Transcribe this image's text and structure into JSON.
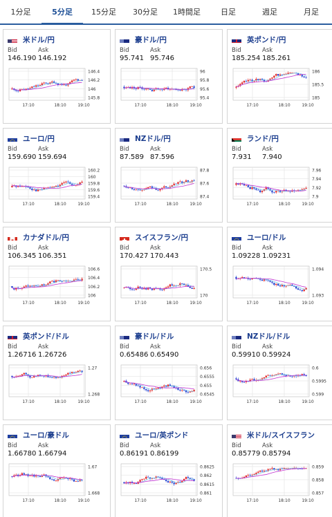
{
  "tabs": [
    {
      "label": "1分足",
      "active": false
    },
    {
      "label": "5分足",
      "active": true
    },
    {
      "label": "15分足",
      "active": false
    },
    {
      "label": "30分足",
      "active": false
    },
    {
      "label": "1時間足",
      "active": false
    },
    {
      "label": "日足",
      "active": false
    },
    {
      "label": "週足",
      "active": false
    },
    {
      "label": "月足",
      "active": false
    }
  ],
  "labels": {
    "bid": "Bid",
    "ask": "Ask"
  },
  "colors": {
    "up": "#e02020",
    "down": "#1f3fd0",
    "ma1": "#c030d0",
    "ma2": "#7fc8e8",
    "grid": "#dddddd",
    "active_tab": "#2a5d9f",
    "pair_text": "#1d3f8f"
  },
  "cards": [
    {
      "pair": "米ドル/円",
      "flag": "us",
      "bid": "146.190",
      "ask": "146.192",
      "ticks": [
        "146.4",
        "146.2",
        "146",
        "145.8"
      ],
      "xt": [
        "17:10",
        "18:10",
        "19:10"
      ],
      "seed": 11,
      "trend": 0.6
    },
    {
      "pair": "豪ドル/円",
      "flag": "au",
      "bid": "95.741",
      "ask": "95.746",
      "ticks": [
        "96",
        "95.8",
        "95.6",
        "95.4"
      ],
      "xt": [
        "17:10",
        "18:10",
        "19:10"
      ],
      "seed": 23,
      "trend": 0.3
    },
    {
      "pair": "英ポンド/円",
      "flag": "gb",
      "bid": "185.254",
      "ask": "185.261",
      "ticks": [
        "186",
        "185.5",
        "185"
      ],
      "xt": [
        "17:10",
        "18:10",
        "19:10"
      ],
      "seed": 37,
      "trend": 0.4
    },
    {
      "pair": "ユーロ/円",
      "flag": "eu",
      "bid": "159.690",
      "ask": "159.694",
      "ticks": [
        "160.2",
        "160",
        "159.8",
        "159.6",
        "159.4"
      ],
      "xt": [
        "17:10",
        "18:10",
        "19:10"
      ],
      "seed": 41,
      "trend": 0.5
    },
    {
      "pair": "NZドル/円",
      "flag": "nz",
      "bid": "87.589",
      "ask": "87.596",
      "ticks": [
        "87.8",
        "87.6",
        "87.4"
      ],
      "xt": [
        "17:10",
        "18:10",
        "19:10"
      ],
      "seed": 53,
      "trend": 0.3
    },
    {
      "pair": "ランド/円",
      "flag": "za",
      "bid": "7.931",
      "ask": "7.940",
      "ticks": [
        "7.96",
        "7.94",
        "7.92",
        "7.9"
      ],
      "xt": [
        "17:10",
        "18:10",
        "19:10"
      ],
      "seed": 67,
      "trend": 0.2
    },
    {
      "pair": "カナダドル/円",
      "flag": "ca",
      "bid": "106.345",
      "ask": "106.351",
      "ticks": [
        "106.6",
        "106.4",
        "106.2",
        "106"
      ],
      "xt": [
        "17:10",
        "18:10",
        "19:10"
      ],
      "seed": 71,
      "trend": 0.5
    },
    {
      "pair": "スイスフラン/円",
      "flag": "ch",
      "bid": "170.427",
      "ask": "170.443",
      "ticks": [
        "170.5",
        "170"
      ],
      "xt": [
        "17:10",
        "18:10",
        "19:10"
      ],
      "seed": 83,
      "trend": 0.7
    },
    {
      "pair": "ユーロ/ドル",
      "flag": "eu",
      "bid": "1.09228",
      "ask": "1.09231",
      "ticks": [
        "1.094",
        "1.093"
      ],
      "xt": [
        "17:10",
        "18:10",
        "19:10"
      ],
      "seed": 97,
      "trend": -0.6
    },
    {
      "pair": "英ポンド/ドル",
      "flag": "gb",
      "bid": "1.26716",
      "ask": "1.26726",
      "ticks": [
        "1.27",
        "1.268"
      ],
      "xt": [
        "17:10",
        "18:10",
        "19:10"
      ],
      "seed": 101,
      "trend": -0.6
    },
    {
      "pair": "豪ドル/ドル",
      "flag": "au",
      "bid": "0.65486",
      "ask": "0.65490",
      "ticks": [
        "0.656",
        "0.6555",
        "0.655",
        "0.6545"
      ],
      "xt": [
        "17:10",
        "18:10",
        "19:10"
      ],
      "seed": 113,
      "trend": 0.1
    },
    {
      "pair": "NZドル/ドル",
      "flag": "nz",
      "bid": "0.59910",
      "ask": "0.59924",
      "ticks": [
        "0.6",
        "0.5995",
        "0.599"
      ],
      "xt": [
        "17:10",
        "18:10",
        "19:10"
      ],
      "seed": 127,
      "trend": -0.3
    },
    {
      "pair": "ユーロ/豪ドル",
      "flag": "eu",
      "bid": "1.66780",
      "ask": "1.66794",
      "ticks": [
        "1.67",
        "1.668"
      ],
      "xt": [
        "17:10",
        "18:10",
        "19:10"
      ],
      "seed": 131,
      "trend": -0.4
    },
    {
      "pair": "ユーロ/英ポンド",
      "flag": "eu",
      "bid": "0.86191",
      "ask": "0.86199",
      "ticks": [
        "0.8625",
        "0.862",
        "0.8615",
        "0.861"
      ],
      "xt": [
        "17:10",
        "18:10",
        "19:10"
      ],
      "seed": 149,
      "trend": 0.3
    },
    {
      "pair": "米ドル/スイスフラン",
      "flag": "us",
      "bid": "0.85779",
      "ask": "0.85794",
      "ticks": [
        "0.859",
        "0.858",
        "0.857"
      ],
      "xt": [
        "17:10",
        "18:10",
        "19:10"
      ],
      "seed": 157,
      "trend": -0.2
    }
  ]
}
